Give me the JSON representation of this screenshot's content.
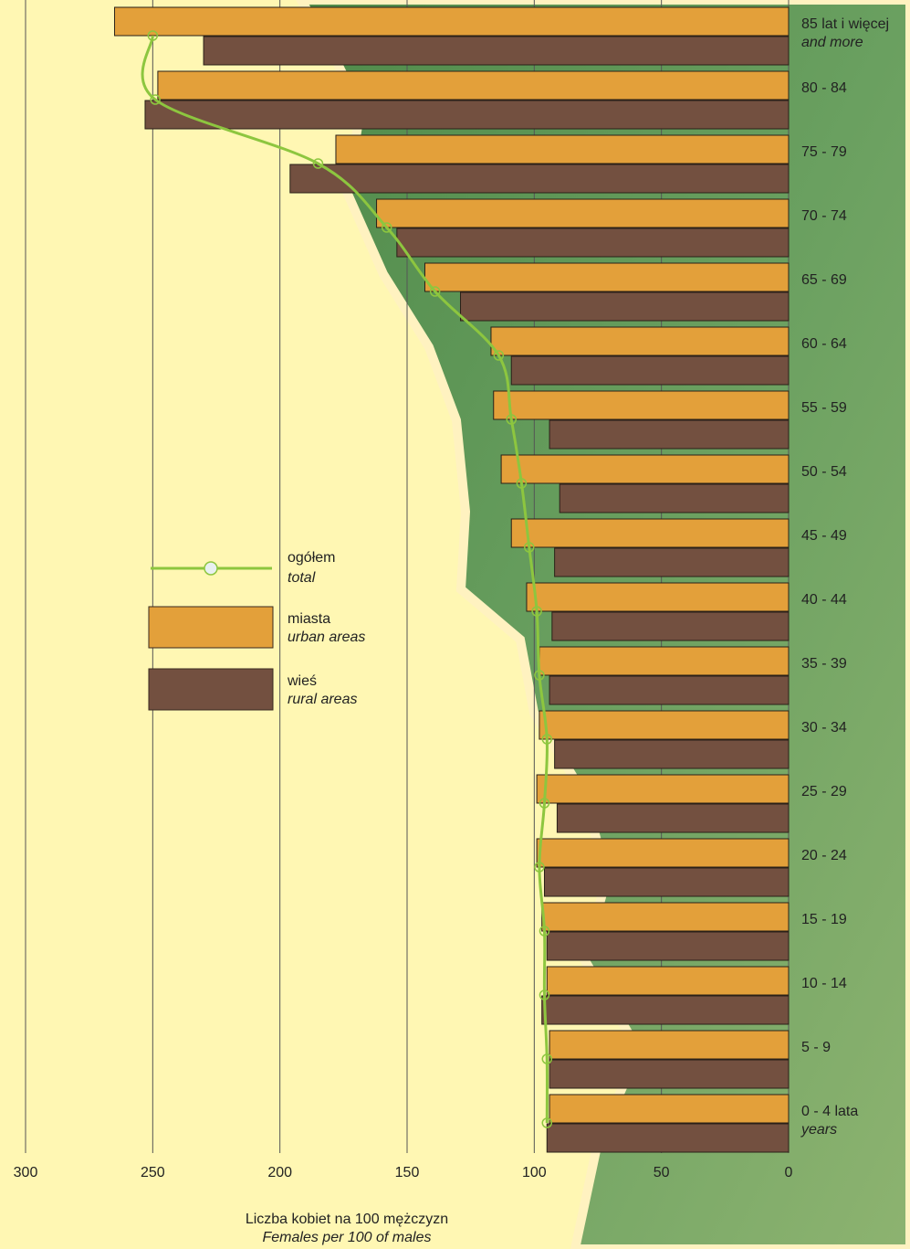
{
  "chart_data": {
    "type": "bar",
    "orientation": "horizontal",
    "categories": [
      "85 lat i więcej",
      "80 - 84",
      "75 - 79",
      "70 - 74",
      "65 - 69",
      "60 - 64",
      "55 - 59",
      "50 - 54",
      "45 - 49",
      "40 - 44",
      "35 - 39",
      "30 - 34",
      "25 - 29",
      "20 - 24",
      "15 - 19",
      "10 - 14",
      "5 - 9",
      "0 - 4 lata"
    ],
    "category_subtitles": [
      "and more",
      null,
      null,
      null,
      null,
      null,
      null,
      null,
      null,
      null,
      null,
      null,
      null,
      null,
      null,
      null,
      null,
      "years"
    ],
    "series": [
      {
        "name": "ogółem",
        "name_en": "total",
        "type": "line",
        "color": "#8dc63f",
        "values": [
          250,
          249,
          185,
          158,
          139,
          114,
          109,
          105,
          102,
          99,
          98,
          95,
          96,
          98,
          96,
          96,
          95,
          95
        ]
      },
      {
        "name": "miasta",
        "name_en": "urban areas",
        "type": "bar",
        "color": "#e3a03a",
        "values": [
          265,
          248,
          178,
          162,
          143,
          117,
          116,
          113,
          109,
          103,
          98,
          98,
          99,
          99,
          97,
          95,
          94,
          94
        ]
      },
      {
        "name": "wieś",
        "name_en": "rural areas",
        "type": "bar",
        "color": "#735040",
        "values": [
          230,
          253,
          196,
          154,
          129,
          109,
          94,
          90,
          92,
          93,
          94,
          92,
          91,
          96,
          95,
          97,
          94,
          95
        ]
      }
    ],
    "xlim": [
      300,
      0
    ],
    "xticks": [
      300,
      250,
      200,
      150,
      100,
      50,
      0
    ],
    "xlabel": "Liczba kobiet na 100 mężczyzn",
    "xlabel_en": "Females per 100 of males",
    "grid": true
  }
}
